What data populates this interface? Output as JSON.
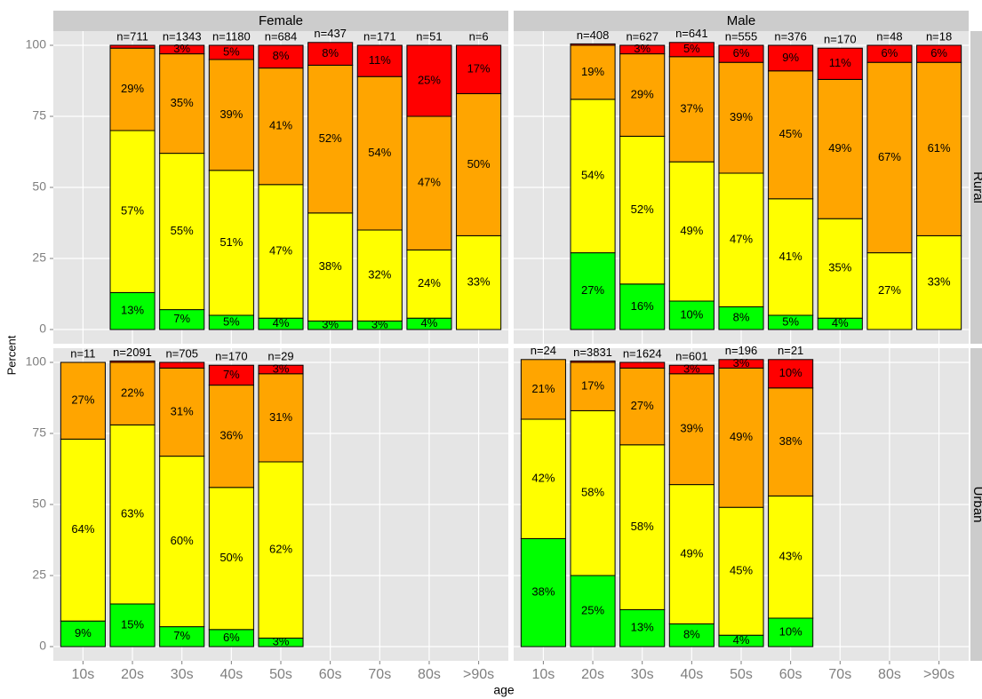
{
  "axes": {
    "xlabel": "age",
    "ylabel": "Percent"
  },
  "facets": {
    "columns": [
      "Female",
      "Male"
    ],
    "rows": [
      "Rural",
      "Urban"
    ]
  },
  "chart_data": [
    {
      "type": "bar",
      "stacked": true,
      "categories": [
        "10s",
        "20s",
        "30s",
        "40s",
        "50s",
        "60s",
        "70s",
        "80s",
        ">90s"
      ],
      "ylim": [
        -5,
        105
      ],
      "yticks": [
        0,
        25,
        50,
        75,
        100
      ],
      "grid": true,
      "n_labels": [
        null,
        "n=711",
        "n=1343",
        "n=1180",
        "n=684",
        "n=437",
        "n=171",
        "n=51",
        "n=6"
      ],
      "series": [
        {
          "color": "#00ff00",
          "values": [
            null,
            13,
            7,
            5,
            4,
            3,
            3,
            4,
            null
          ],
          "value_labels": [
            null,
            "13%",
            "7%",
            "5%",
            "4%",
            "3%",
            "3%",
            "4%",
            null
          ]
        },
        {
          "color": "#ffff00",
          "values": [
            null,
            57,
            55,
            51,
            47,
            38,
            32,
            24,
            33
          ],
          "value_labels": [
            null,
            "57%",
            "55%",
            "51%",
            "47%",
            "38%",
            "32%",
            "24%",
            "33%"
          ]
        },
        {
          "color": "#ffa500",
          "values": [
            null,
            29,
            35,
            39,
            41,
            52,
            54,
            47,
            50
          ],
          "value_labels": [
            null,
            "29%",
            "35%",
            "39%",
            "41%",
            "52%",
            "54%",
            "47%",
            "50%"
          ]
        },
        {
          "color": "#ff0000",
          "values": [
            null,
            1,
            3,
            5,
            8,
            8,
            11,
            25,
            17
          ],
          "value_labels": [
            null,
            null,
            "3%",
            "5%",
            "8%",
            "8%",
            "11%",
            "25%",
            "17%"
          ]
        }
      ]
    },
    {
      "type": "bar",
      "stacked": true,
      "categories": [
        "10s",
        "20s",
        "30s",
        "40s",
        "50s",
        "60s",
        "70s",
        "80s",
        ">90s"
      ],
      "ylim": [
        -5,
        105
      ],
      "yticks": [
        0,
        25,
        50,
        75,
        100
      ],
      "grid": true,
      "n_labels": [
        null,
        "n=408",
        "n=627",
        "n=641",
        "n=555",
        "n=376",
        "n=170",
        "n=48",
        "n=18"
      ],
      "series": [
        {
          "color": "#00ff00",
          "values": [
            null,
            27,
            16,
            10,
            8,
            5,
            4,
            null,
            null
          ],
          "value_labels": [
            null,
            "27%",
            "16%",
            "10%",
            "8%",
            "5%",
            "4%",
            null,
            null
          ]
        },
        {
          "color": "#ffff00",
          "values": [
            null,
            54,
            52,
            49,
            47,
            41,
            35,
            27,
            33
          ],
          "value_labels": [
            null,
            "54%",
            "52%",
            "49%",
            "47%",
            "41%",
            "35%",
            "27%",
            "33%"
          ]
        },
        {
          "color": "#ffa500",
          "values": [
            null,
            19,
            29,
            37,
            39,
            45,
            49,
            67,
            61
          ],
          "value_labels": [
            null,
            "19%",
            "29%",
            "37%",
            "39%",
            "45%",
            "49%",
            "67%",
            "61%"
          ]
        },
        {
          "color": "#ff0000",
          "values": [
            null,
            0.5,
            3,
            5,
            6,
            9,
            11,
            6,
            6
          ],
          "value_labels": [
            null,
            null,
            "3%",
            "5%",
            "6%",
            "9%",
            "11%",
            "6%",
            "6%"
          ]
        }
      ]
    },
    {
      "type": "bar",
      "stacked": true,
      "categories": [
        "10s",
        "20s",
        "30s",
        "40s",
        "50s",
        "60s",
        "70s",
        "80s",
        ">90s"
      ],
      "ylim": [
        -5,
        105
      ],
      "yticks": [
        0,
        25,
        50,
        75,
        100
      ],
      "grid": true,
      "n_labels": [
        "n=11",
        "n=2091",
        "n=705",
        "n=170",
        "n=29",
        null,
        null,
        null,
        null
      ],
      "series": [
        {
          "color": "#00ff00",
          "values": [
            9,
            15,
            7,
            6,
            3,
            null,
            null,
            null,
            null
          ],
          "value_labels": [
            "9%",
            "15%",
            "7%",
            "6%",
            "3%",
            null,
            null,
            null,
            null
          ]
        },
        {
          "color": "#ffff00",
          "values": [
            64,
            63,
            60,
            50,
            62,
            null,
            null,
            null,
            null
          ],
          "value_labels": [
            "64%",
            "63%",
            "60%",
            "50%",
            "62%",
            null,
            null,
            null,
            null
          ]
        },
        {
          "color": "#ffa500",
          "values": [
            27,
            22,
            31,
            36,
            31,
            null,
            null,
            null,
            null
          ],
          "value_labels": [
            "27%",
            "22%",
            "31%",
            "36%",
            "31%",
            null,
            null,
            null,
            null
          ]
        },
        {
          "color": "#ff0000",
          "values": [
            null,
            0.5,
            2,
            7,
            3,
            null,
            null,
            null,
            null
          ],
          "value_labels": [
            null,
            null,
            null,
            "7%",
            "3%",
            null,
            null,
            null,
            null
          ]
        }
      ]
    },
    {
      "type": "bar",
      "stacked": true,
      "categories": [
        "10s",
        "20s",
        "30s",
        "40s",
        "50s",
        "60s",
        "70s",
        "80s",
        ">90s"
      ],
      "ylim": [
        -5,
        105
      ],
      "yticks": [
        0,
        25,
        50,
        75,
        100
      ],
      "grid": true,
      "n_labels": [
        "n=24",
        "n=3831",
        "n=1624",
        "n=601",
        "n=196",
        "n=21",
        null,
        null,
        null
      ],
      "series": [
        {
          "color": "#00ff00",
          "values": [
            38,
            25,
            13,
            8,
            4,
            10,
            null,
            null,
            null
          ],
          "value_labels": [
            "38%",
            "25%",
            "13%",
            "8%",
            "4%",
            "10%",
            null,
            null,
            null
          ]
        },
        {
          "color": "#ffff00",
          "values": [
            42,
            58,
            58,
            49,
            45,
            43,
            null,
            null,
            null
          ],
          "value_labels": [
            "42%",
            "58%",
            "58%",
            "49%",
            "45%",
            "43%",
            null,
            null,
            null
          ]
        },
        {
          "color": "#ffa500",
          "values": [
            21,
            17,
            27,
            39,
            49,
            38,
            null,
            null,
            null
          ],
          "value_labels": [
            "21%",
            "17%",
            "27%",
            "39%",
            "49%",
            "38%",
            null,
            null,
            null
          ]
        },
        {
          "color": "#ff0000",
          "values": [
            null,
            0.5,
            2,
            3,
            3,
            10,
            null,
            null,
            null
          ],
          "value_labels": [
            null,
            null,
            null,
            "3%",
            "3%",
            "10%",
            null,
            null,
            null
          ]
        }
      ]
    }
  ]
}
